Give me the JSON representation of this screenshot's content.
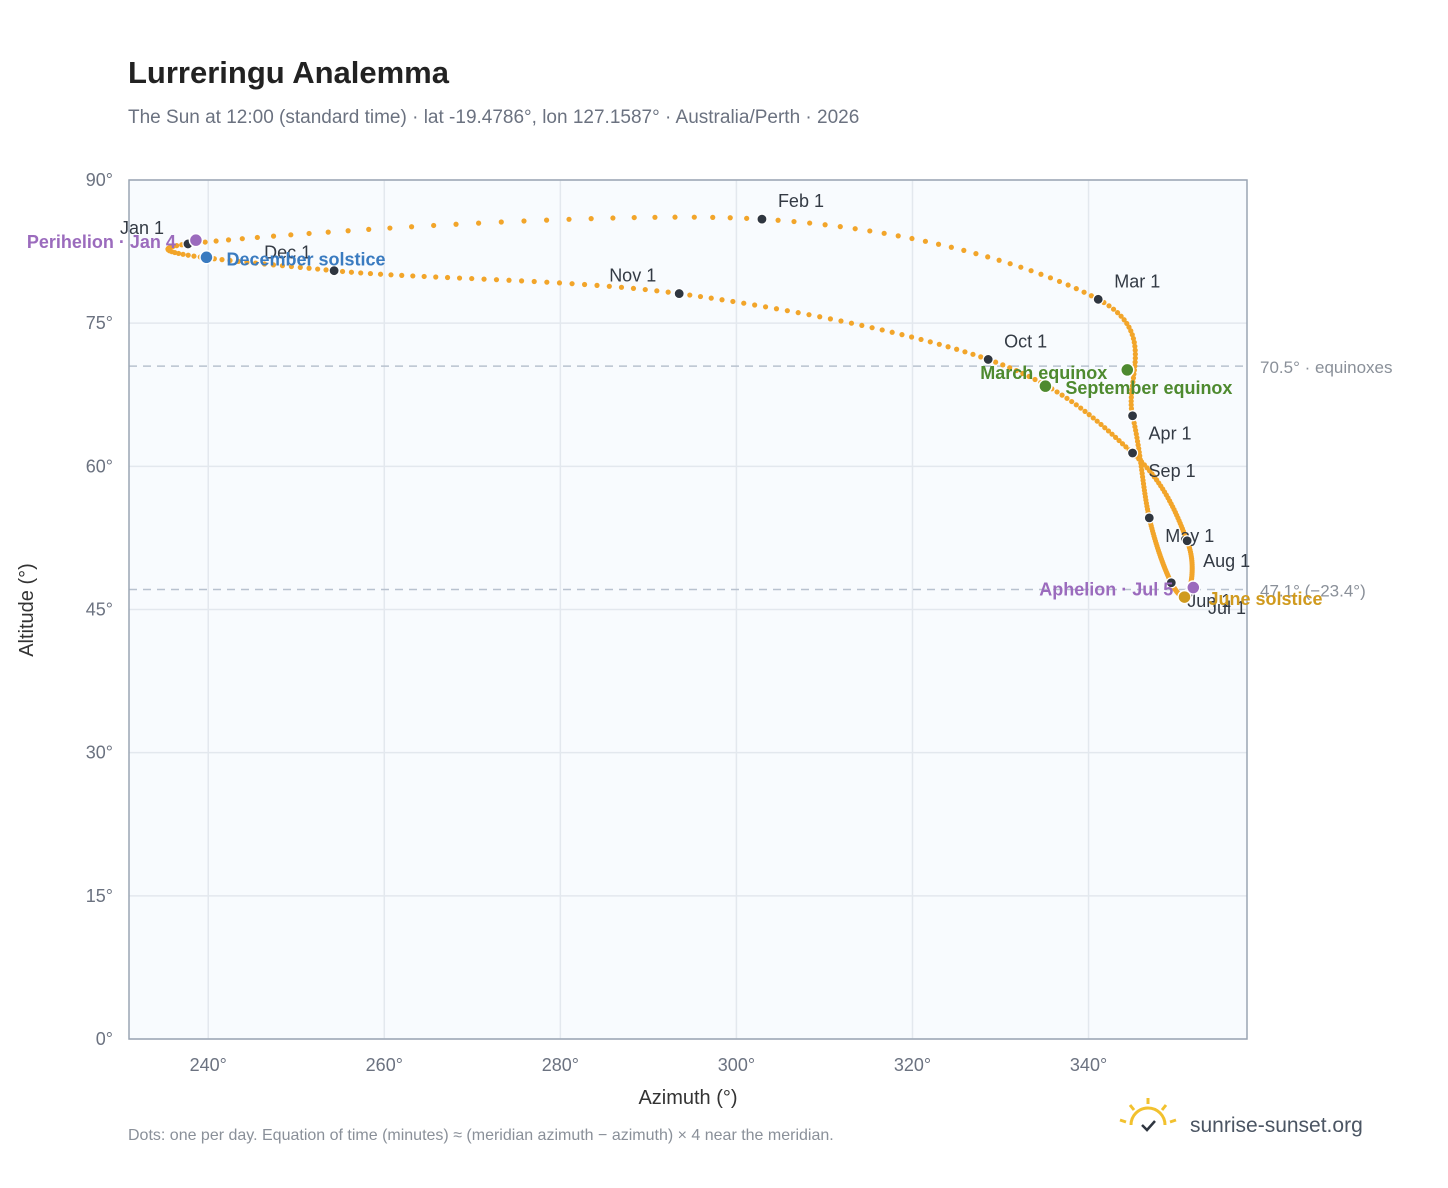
{
  "title": "Lurreringu Analemma",
  "subtitle": "The Sun at 12:00 (standard time) · lat -19.4786°, lon 127.1587° · Australia/Perth · 2026",
  "footnote": "Dots: one per day. Equation of time (minutes) ≈ (meridian azimuth − azimuth) × 4 near the meridian.",
  "brand": {
    "name": "sunrise-sunset.org",
    "icon": "sun-check-icon"
  },
  "colors": {
    "path": "#f2a52a",
    "month_marker": "#2f3640",
    "perihelion_aphelion": "#9b6bbd",
    "december_solstice": "#3a7bc0",
    "equinox": "#4e8a2f",
    "june_solstice": "#d09a1e",
    "reference_line": "#b8c2cf"
  },
  "chart_data": {
    "type": "scatter",
    "title": "Lurreringu Analemma",
    "subtitle": "The Sun at 12:00 (standard time) · lat -19.4786°, lon 127.1587° · Australia/Perth · 2026",
    "xlabel": "Azimuth (°)",
    "ylabel": "Altitude (°)",
    "xlim": [
      231,
      358
    ],
    "ylim": [
      0,
      90
    ],
    "x_ticks": [
      240,
      260,
      280,
      300,
      320,
      340
    ],
    "x_tick_labels": [
      "240°",
      "260°",
      "280°",
      "300°",
      "320°",
      "340°"
    ],
    "y_ticks": [
      0,
      15,
      30,
      45,
      60,
      75,
      90
    ],
    "y_tick_labels": [
      "0°",
      "15°",
      "30°",
      "45°",
      "60°",
      "75°",
      "90°"
    ],
    "grid": true,
    "months": [
      {
        "label": "Jan 1",
        "azimuth": 237.7,
        "altitude": 83.3,
        "date": "2026-01-01"
      },
      {
        "label": "Feb 1",
        "azimuth": 302.9,
        "altitude": 85.9,
        "date": "2026-02-01"
      },
      {
        "label": "Mar 1",
        "azimuth": 341.1,
        "altitude": 77.5,
        "date": "2026-03-01"
      },
      {
        "label": "Apr 1",
        "azimuth": 345.0,
        "altitude": 65.3,
        "date": "2026-04-01"
      },
      {
        "label": "May 1",
        "azimuth": 346.9,
        "altitude": 54.6,
        "date": "2026-05-01"
      },
      {
        "label": "Jun 1",
        "azimuth": 349.4,
        "altitude": 47.8,
        "date": "2026-06-01"
      },
      {
        "label": "Jul 1",
        "azimuth": 351.3,
        "altitude": 46.6,
        "date": "2026-07-01"
      },
      {
        "label": "Aug 1",
        "azimuth": 351.2,
        "altitude": 52.2,
        "date": "2026-08-01"
      },
      {
        "label": "Sep 1",
        "azimuth": 345.0,
        "altitude": 61.4,
        "date": "2026-09-01"
      },
      {
        "label": "Oct 1",
        "azimuth": 328.6,
        "altitude": 71.2,
        "date": "2026-10-01"
      },
      {
        "label": "Nov 1",
        "azimuth": 293.5,
        "altitude": 78.1,
        "date": "2026-11-01"
      },
      {
        "label": "Dec 1",
        "azimuth": 254.3,
        "altitude": 80.5,
        "date": "2026-12-01"
      }
    ],
    "events": [
      {
        "label": "Perihelion · Jan 4",
        "azimuth": 238.6,
        "altitude": 83.7,
        "color": "#9b6bbd"
      },
      {
        "label": "December solstice",
        "azimuth": 239.8,
        "altitude": 81.9,
        "color": "#3a7bc0"
      },
      {
        "label": "March equinox",
        "azimuth": 344.4,
        "altitude": 70.1,
        "color": "#4e8a2f"
      },
      {
        "label": "September equinox",
        "azimuth": 335.1,
        "altitude": 68.4,
        "color": "#4e8a2f"
      },
      {
        "label": "Aphelion · Jul 5",
        "azimuth": 351.9,
        "altitude": 47.3,
        "color": "#9b6bbd"
      },
      {
        "label": "June solstice",
        "azimuth": 350.9,
        "altitude": 46.3,
        "color": "#d09a1e"
      }
    ],
    "reference_lines": [
      {
        "altitude": 70.5,
        "label": "70.5° · equinoxes"
      },
      {
        "altitude": 47.1,
        "label": "47.1° (−23.4°)"
      }
    ]
  }
}
